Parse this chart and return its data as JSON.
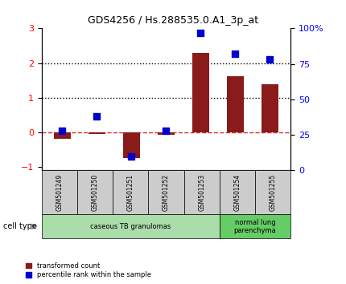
{
  "title": "GDS4256 / Hs.288535.0.A1_3p_at",
  "samples": [
    "GSM501249",
    "GSM501250",
    "GSM501251",
    "GSM501252",
    "GSM501253",
    "GSM501254",
    "GSM501255"
  ],
  "transformed_count": [
    -0.18,
    -0.04,
    -0.75,
    -0.08,
    2.28,
    1.62,
    1.38
  ],
  "percentile_rank": [
    28,
    38,
    10,
    28,
    97,
    82,
    78
  ],
  "bar_color": "#8B1A1A",
  "dot_color": "#0000CC",
  "ylim_left": [
    -1.1,
    3.0
  ],
  "ylim_right": [
    0,
    100
  ],
  "yticks_left": [
    -1,
    0,
    1,
    2,
    3
  ],
  "yticks_right": [
    0,
    25,
    50,
    75,
    100
  ],
  "ytick_labels_right": [
    "0",
    "25",
    "50",
    "75",
    "100%"
  ],
  "hline_y": [
    0,
    1,
    2
  ],
  "hline_styles": [
    "dashed",
    "dotted",
    "dotted"
  ],
  "hline_colors": [
    "#CC3333",
    "black",
    "black"
  ],
  "cell_type_groups": [
    {
      "label": "caseous TB granulomas",
      "samples": [
        0,
        1,
        2,
        3,
        4
      ],
      "color": "#AADDAA"
    },
    {
      "label": "normal lung\nparenchyma",
      "samples": [
        5,
        6
      ],
      "color": "#66CC66"
    }
  ],
  "legend_items": [
    {
      "label": "transformed count",
      "color": "#8B1A1A",
      "type": "square"
    },
    {
      "label": "percentile rank within the sample",
      "color": "#0000CC",
      "type": "square"
    }
  ],
  "cell_type_label": "cell type",
  "arrow_color": "#888888",
  "background_plot": "#FFFFFF",
  "sample_box_color": "#CCCCCC",
  "bar_width": 0.5,
  "dot_size": 40
}
